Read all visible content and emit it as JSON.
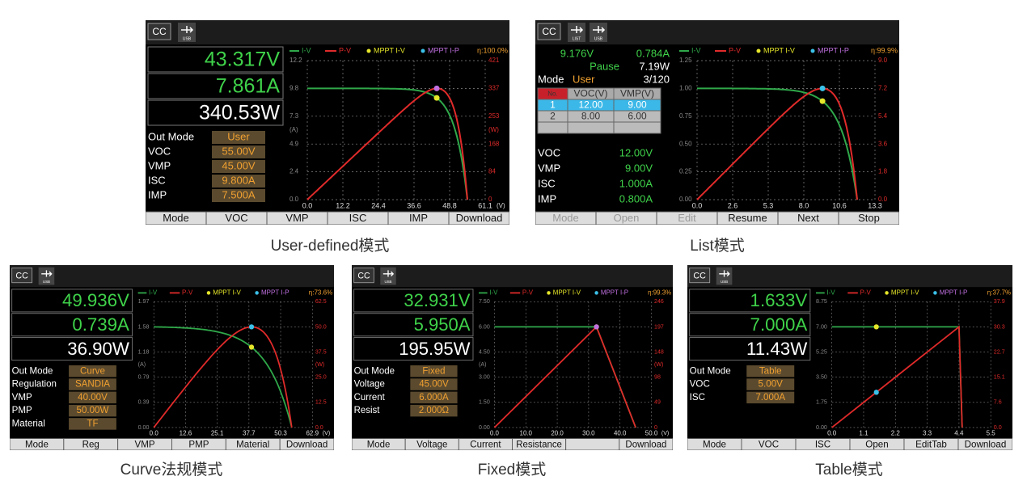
{
  "panels": [
    {
      "status": "CC",
      "icons": [
        "USB"
      ],
      "caption": "User-defined模式",
      "readouts": [
        "43.317V",
        "7.861A",
        "340.53W"
      ],
      "params": [
        {
          "label": "Out Mode",
          "value": "User"
        },
        {
          "label": "VOC",
          "value": "55.00V"
        },
        {
          "label": "VMP",
          "value": "45.00V"
        },
        {
          "label": "ISC",
          "value": "9.800A"
        },
        {
          "label": "IMP",
          "value": "7.500A"
        }
      ],
      "chart": {
        "legend": [
          "I-V",
          "P-V",
          "MPPT I-V",
          "MPPT I-P"
        ],
        "efficiency": "η:100.0%",
        "y_unit": "(A)",
        "y2_unit": "(W)",
        "x_unit": "(V)",
        "yticks": [
          "12.2",
          "9.8",
          "7.3",
          "4.9",
          "2.4",
          "0.0"
        ],
        "y2ticks": [
          "421",
          "337",
          "253",
          "168",
          "84",
          "0"
        ],
        "xticks": [
          "0.0",
          "12.2",
          "24.4",
          "36.6",
          "48.8",
          "61.1"
        ]
      },
      "softkeys": [
        "Mode",
        "VOC",
        "VMP",
        "ISC",
        "IMP",
        "Download"
      ]
    },
    {
      "status": "CC",
      "icons": [
        "LIST",
        "USB"
      ],
      "caption": "List模式",
      "list": {
        "voltage": "9.176V",
        "current": "0.784A",
        "state": "Pause",
        "power": "7.19W",
        "mode_label": "Mode",
        "mode": "User",
        "step": "3/120",
        "table_header": [
          "No.",
          "VOC(V)",
          "VMP(V)"
        ],
        "table_rows": [
          [
            "1",
            "12.00",
            "9.00"
          ],
          [
            "2",
            "8.00",
            "6.00"
          ]
        ]
      },
      "params": [
        {
          "label": "VOC",
          "value": "12.00V"
        },
        {
          "label": "VMP",
          "value": "9.00V"
        },
        {
          "label": "ISC",
          "value": "1.000A"
        },
        {
          "label": "IMP",
          "value": "0.800A"
        }
      ],
      "chart": {
        "legend": [
          "I-V",
          "P-V",
          "MPPT I-V",
          "MPPT I-P"
        ],
        "efficiency": "η:99.9%",
        "yticks": [
          "1.25",
          "1.00",
          "0.75",
          "0.50",
          "0.25",
          "0.00"
        ],
        "y2ticks": [
          "9.0",
          "7.2",
          "5.4",
          "3.6",
          "1.8",
          "0.0"
        ],
        "xticks": [
          "0.0",
          "2.6",
          "5.3",
          "8.0",
          "10.6",
          "13.3"
        ]
      },
      "softkeys": [
        "Mode",
        "Open",
        "Edit",
        "Resume",
        "Next",
        "Stop"
      ]
    },
    {
      "status": "CC",
      "icons": [
        "USB"
      ],
      "caption": "Curve法规模式",
      "readouts": [
        "49.936V",
        "0.739A",
        "36.90W"
      ],
      "params": [
        {
          "label": "Out Mode",
          "value": "Curve"
        },
        {
          "label": "Regulation",
          "value": "SANDIA"
        },
        {
          "label": "VMP",
          "value": "40.00V"
        },
        {
          "label": "PMP",
          "value": "50.00W"
        },
        {
          "label": "Material",
          "value": "TF"
        }
      ],
      "chart": {
        "legend": [
          "I-V",
          "P-V",
          "MPPT I-V",
          "MPPT I-P"
        ],
        "efficiency": "η:73.6%",
        "y_unit": "(A)",
        "y2_unit": "(W)",
        "x_unit": "(V)",
        "yticks": [
          "1.97",
          "1.58",
          "1.18",
          "0.79",
          "0.39",
          "0.00"
        ],
        "y2ticks": [
          "62.5",
          "50.0",
          "37.5",
          "25.0",
          "12.5",
          "0.0"
        ],
        "xticks": [
          "0.0",
          "12.6",
          "25.1",
          "37.7",
          "50.3",
          "62.9"
        ]
      },
      "softkeys": [
        "Mode",
        "Reg",
        "VMP",
        "PMP",
        "Material",
        "Download"
      ]
    },
    {
      "status": "CC",
      "icons": [
        "USB"
      ],
      "caption": "Fixed模式",
      "readouts": [
        "32.931V",
        "5.950A",
        "195.95W"
      ],
      "params": [
        {
          "label": "Out Mode",
          "value": "Fixed"
        },
        {
          "label": "Voltage",
          "value": "45.00V"
        },
        {
          "label": "Current",
          "value": "6.000A"
        },
        {
          "label": "Resist",
          "value": "2.000Ω"
        }
      ],
      "chart": {
        "legend": [
          "I-V",
          "P-V",
          "MPPT I-V",
          "MPPT I-P"
        ],
        "efficiency": "η:99.3%",
        "y_unit": "(A)",
        "y2_unit": "(W)",
        "x_unit": "(V)",
        "yticks": [
          "7.50",
          "6.00",
          "4.50",
          "3.00",
          "1.50",
          "0.00"
        ],
        "y2ticks": [
          "246",
          "197",
          "148",
          "98",
          "49",
          "0"
        ],
        "xticks": [
          "0.0",
          "10.0",
          "20.0",
          "30.0",
          "40.0",
          "50.0"
        ]
      },
      "softkeys": [
        "Mode",
        "Voltage",
        "Current",
        "Resistance",
        null,
        "Download"
      ]
    },
    {
      "status": "CC",
      "icons": [
        "USB"
      ],
      "caption": "Table模式",
      "readouts": [
        "1.633V",
        "7.000A",
        "11.43W"
      ],
      "params": [
        {
          "label": "Out Mode",
          "value": "Table"
        },
        {
          "label": "VOC",
          "value": "5.00V"
        },
        {
          "label": "ISC",
          "value": "7.000A"
        }
      ],
      "chart": {
        "legend": [
          "I-V",
          "P-V",
          "MPPT I-V",
          "MPPT I-P"
        ],
        "efficiency": "η:37.7%",
        "yticks": [
          "8.75",
          "7.00",
          "5.25",
          "3.50",
          "1.75",
          "0.00"
        ],
        "y2ticks": [
          "37.9",
          "30.3",
          "22.7",
          "15.1",
          "7.6",
          "0.0"
        ],
        "xticks": [
          "0.0",
          "1.1",
          "2.2",
          "3.3",
          "4.4",
          "5.5"
        ]
      },
      "softkeys": [
        "Mode",
        "VOC",
        "ISC",
        "Open",
        "EditTab",
        "Download"
      ]
    }
  ]
}
